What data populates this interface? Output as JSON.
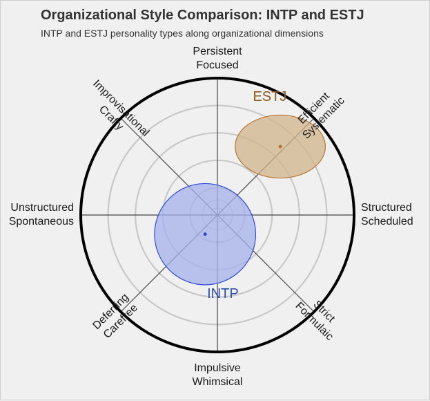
{
  "title": "Organizational Style Comparison: INTP and ESTJ",
  "subtitle": "INTP and ESTJ personality types along organizational dimensions",
  "chart_data": {
    "type": "scatter",
    "subtype": "polar",
    "title": "Organizational Style Comparison: INTP and ESTJ",
    "subtitle": "INTP and ESTJ personality types along organizational dimensions",
    "radial_range": [
      0,
      100
    ],
    "grid_rings": [
      20,
      40,
      60,
      80
    ],
    "axes": [
      {
        "angle_deg": 90,
        "labels": [
          "Persistent",
          "Focused"
        ]
      },
      {
        "angle_deg": 45,
        "labels": [
          "Efficient",
          "Systematic"
        ]
      },
      {
        "angle_deg": 0,
        "labels": [
          "Structured",
          "Scheduled"
        ]
      },
      {
        "angle_deg": -45,
        "labels": [
          "Strict",
          "Formulaic"
        ]
      },
      {
        "angle_deg": -90,
        "labels": [
          "Impulsive",
          "Whimsical"
        ]
      },
      {
        "angle_deg": -135,
        "labels": [
          "Deferring",
          "Carefree"
        ]
      },
      {
        "angle_deg": 180,
        "labels": [
          "Unstructured",
          "Spontaneous"
        ]
      },
      {
        "angle_deg": 135,
        "labels": [
          "Improvisational",
          "Crafty"
        ]
      }
    ],
    "series": [
      {
        "name": "ESTJ",
        "center": {
          "x": 46,
          "y": 50
        },
        "spread": {
          "x": 33,
          "y": 23
        },
        "fill": "#d2b48c",
        "stroke": "#b8742e",
        "label_color": "#8b5a1f"
      },
      {
        "name": "INTP",
        "center": {
          "x": -9,
          "y": -14
        },
        "spread": {
          "x": 37,
          "y": 37
        },
        "fill": "#a4b1ea",
        "stroke": "#3048d8",
        "label_color": "#2f4bb0"
      }
    ]
  }
}
